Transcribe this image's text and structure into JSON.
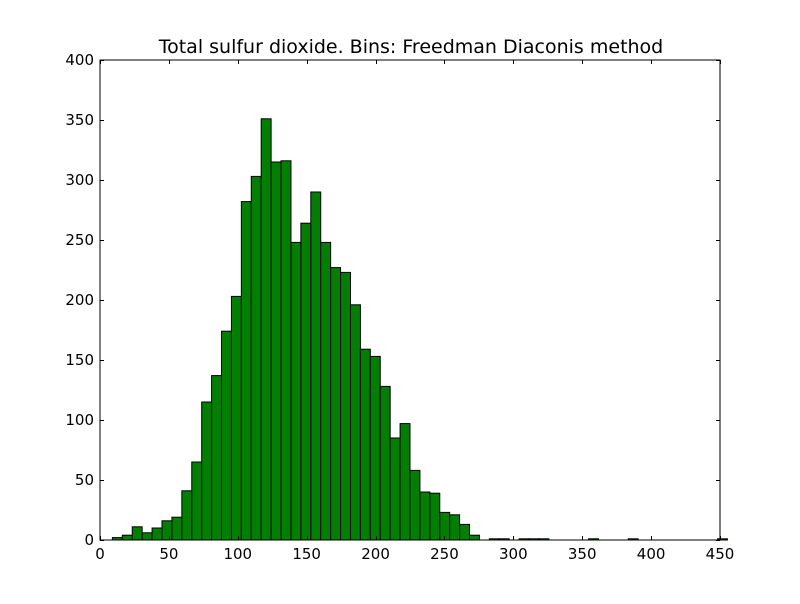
{
  "chart_data": {
    "type": "bar",
    "title": "Total sulfur dioxide. Bins: Freedman Diaconis method",
    "xlabel": "",
    "ylabel": "",
    "xlim": [
      0,
      450
    ],
    "ylim": [
      0,
      400
    ],
    "grid": false,
    "bar_color": "#008000",
    "edge_color": "#000000",
    "x_ticks": [
      0,
      50,
      100,
      150,
      200,
      250,
      300,
      350,
      400,
      450
    ],
    "y_ticks": [
      0,
      50,
      100,
      150,
      200,
      250,
      300,
      350,
      400
    ],
    "bin_start": 9,
    "bin_width": 7.2,
    "values": [
      2,
      4,
      11,
      6,
      10,
      16,
      19,
      41,
      65,
      115,
      137,
      174,
      203,
      282,
      303,
      351,
      315,
      316,
      248,
      264,
      290,
      248,
      227,
      223,
      196,
      159,
      153,
      128,
      85,
      97,
      58,
      40,
      39,
      23,
      21,
      13,
      4,
      0,
      1,
      1,
      0,
      1,
      1,
      1,
      0,
      0,
      0,
      0,
      1,
      0,
      0,
      0,
      1,
      0,
      0,
      0,
      0,
      0,
      0,
      0,
      0,
      1
    ]
  }
}
